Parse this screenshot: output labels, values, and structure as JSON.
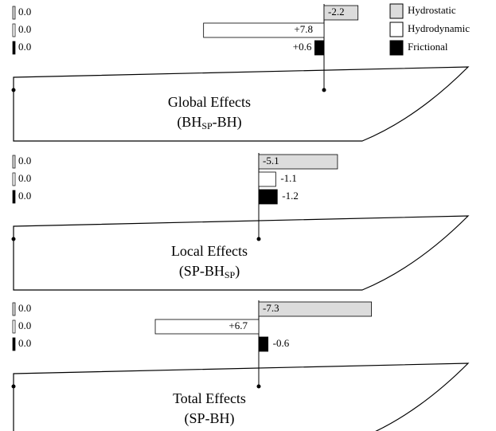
{
  "series_names": [
    "Hydrostatic",
    "Hydrodynamic",
    "Frictional"
  ],
  "colors": [
    "#dcdcdc",
    "#ffffff",
    "#000000"
  ],
  "chart_data": [
    {
      "type": "bar",
      "title": "Global Effects",
      "subtitle_parts": [
        "(BH",
        "SP",
        "-BH)"
      ],
      "values": [
        -2.2,
        7.8,
        0.6
      ],
      "value_labels": [
        "-2.2",
        "+7.8",
        "+0.6"
      ],
      "reference_values": [
        0,
        0,
        0
      ],
      "reference_labels": [
        "0.0",
        "0.0",
        "0.0"
      ]
    },
    {
      "type": "bar",
      "title": "Local Effects",
      "subtitle_parts": [
        "(SP-BH",
        "SP",
        ")"
      ],
      "values": [
        -5.1,
        -1.1,
        -1.2
      ],
      "value_labels": [
        "-5.1",
        "-1.1",
        "-1.2"
      ],
      "reference_values": [
        0,
        0,
        0
      ],
      "reference_labels": [
        "0.0",
        "0.0",
        "0.0"
      ]
    },
    {
      "type": "bar",
      "title": "Total Effects",
      "subtitle_parts": [
        "(SP-BH)"
      ],
      "values": [
        -7.3,
        6.7,
        -0.6
      ],
      "value_labels": [
        "-7.3",
        "+6.7",
        "-0.6"
      ],
      "reference_values": [
        0,
        0,
        0
      ],
      "reference_labels": [
        "0.0",
        "0.0",
        "0.0"
      ]
    }
  ]
}
